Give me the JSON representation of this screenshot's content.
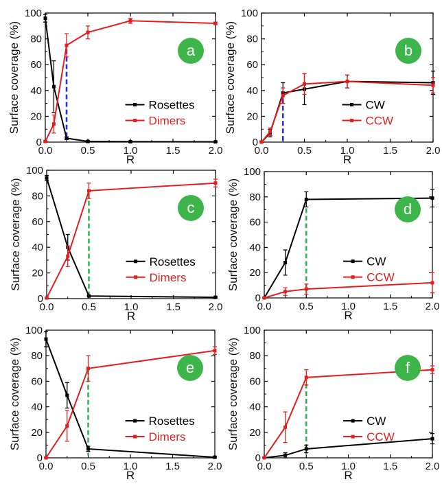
{
  "chart_data": [
    {
      "id": "a",
      "type": "line",
      "badge": "a",
      "ylabel": "Surface coverage (%)",
      "xlabel": "R",
      "xlim": [
        0,
        2
      ],
      "ylim": [
        0,
        100
      ],
      "xticks": [
        "0.0",
        "0.5",
        "1.0",
        "1.5",
        "2.0"
      ],
      "yticks": [
        "0",
        "20",
        "40",
        "60",
        "80",
        "100"
      ],
      "legend_position": "bottom-right",
      "marker_x": 0.25,
      "marker_range": [
        3,
        72
      ],
      "marker_style": "blue-dashed",
      "series": [
        {
          "name": "Rosettes",
          "color": "#000000",
          "x": [
            0,
            0.1,
            0.25,
            0.5,
            1.0,
            2.0
          ],
          "y": [
            96,
            43,
            3,
            0.5,
            0.3,
            0.2
          ],
          "err": [
            3,
            20,
            1,
            0.5,
            0.3,
            0.2
          ]
        },
        {
          "name": "Dimers",
          "color": "#e31e1e",
          "x": [
            0,
            0.1,
            0.25,
            0.5,
            1.0,
            2.0
          ],
          "y": [
            0.5,
            14,
            75,
            85,
            94,
            92
          ],
          "err": [
            0.5,
            7,
            9,
            5,
            2,
            1
          ]
        }
      ]
    },
    {
      "id": "b",
      "type": "line",
      "badge": "b",
      "ylabel": "Surface coverage (%)",
      "xlabel": "R",
      "xlim": [
        0,
        2
      ],
      "ylim": [
        0,
        100
      ],
      "xticks": [
        "0.0",
        "0.5",
        "1.0",
        "1.5",
        "2.0"
      ],
      "yticks": [
        "0",
        "20",
        "40",
        "60",
        "80",
        "100"
      ],
      "legend_position": "bottom-right",
      "marker_x": 0.25,
      "marker_range": [
        0,
        34
      ],
      "marker_style": "blue-dashed",
      "series": [
        {
          "name": "CW",
          "color": "#000000",
          "x": [
            0,
            0.1,
            0.25,
            0.5,
            1.0,
            2.0
          ],
          "y": [
            0,
            7,
            38,
            41,
            47,
            46
          ],
          "err": [
            1,
            3,
            8,
            12,
            5,
            9
          ]
        },
        {
          "name": "CCW",
          "color": "#e31e1e",
          "x": [
            0,
            0.1,
            0.25,
            0.5,
            1.0,
            2.0
          ],
          "y": [
            0,
            8,
            36,
            45,
            47,
            44
          ],
          "err": [
            1,
            3,
            6,
            8,
            5,
            6
          ]
        }
      ]
    },
    {
      "id": "c",
      "type": "line",
      "badge": "c",
      "ylabel": "Surface coverage (%)",
      "xlabel": "R",
      "xlim": [
        0,
        2
      ],
      "ylim": [
        0,
        100
      ],
      "xticks": [
        "0.0",
        "0.5",
        "1.0",
        "1.5",
        "2.0"
      ],
      "yticks": [
        "0",
        "20",
        "40",
        "60",
        "80",
        "100"
      ],
      "legend_position": "bottom-right",
      "marker_x": 0.5,
      "marker_range": [
        2,
        82
      ],
      "marker_style": "green-dashed",
      "series": [
        {
          "name": "Rosettes",
          "color": "#000000",
          "x": [
            0,
            0.25,
            0.5,
            2.0
          ],
          "y": [
            94,
            40,
            2,
            1
          ],
          "err": [
            2,
            10,
            0.5,
            0.5
          ]
        },
        {
          "name": "Dimers",
          "color": "#e31e1e",
          "x": [
            0,
            0.25,
            0.5,
            2.0
          ],
          "y": [
            0.5,
            33,
            84,
            90
          ],
          "err": [
            0.5,
            8,
            6,
            3
          ]
        }
      ]
    },
    {
      "id": "d",
      "type": "line",
      "badge": "d",
      "ylabel": "Surface coverage (%)",
      "xlabel": "R",
      "xlim": [
        0,
        2
      ],
      "ylim": [
        0,
        100
      ],
      "xticks": [
        "0.0",
        "0.5",
        "1.0",
        "1.5",
        "2.0"
      ],
      "yticks": [
        "0",
        "20",
        "40",
        "60",
        "80",
        "100"
      ],
      "legend_position": "bottom-right",
      "marker_x": 0.5,
      "marker_range": [
        4,
        71
      ],
      "marker_style": "green-dashed",
      "series": [
        {
          "name": "CW",
          "color": "#000000",
          "x": [
            0,
            0.25,
            0.5,
            2.0
          ],
          "y": [
            0,
            28,
            78,
            79
          ],
          "err": [
            0.5,
            10,
            6,
            7
          ]
        },
        {
          "name": "CCW",
          "color": "#e31e1e",
          "x": [
            0,
            0.25,
            0.5,
            2.0
          ],
          "y": [
            0,
            5,
            7,
            12
          ],
          "err": [
            0.5,
            3,
            4,
            8
          ]
        }
      ]
    },
    {
      "id": "e",
      "type": "line",
      "badge": "e",
      "ylabel": "Surface coverage (%)",
      "xlabel": "R",
      "xlim": [
        0,
        2
      ],
      "ylim": [
        0,
        100
      ],
      "xticks": [
        "0.0",
        "0.5",
        "1.0",
        "1.5",
        "2.0"
      ],
      "yticks": [
        "0",
        "20",
        "40",
        "60",
        "80",
        "100"
      ],
      "legend_position": "bottom-right",
      "marker_x": 0.5,
      "marker_range": [
        2,
        69
      ],
      "marker_style": "green-dashed",
      "series": [
        {
          "name": "Rosettes",
          "color": "#000000",
          "x": [
            0,
            0.25,
            0.5,
            2.0
          ],
          "y": [
            93,
            49,
            7,
            0.5
          ],
          "err": [
            6,
            10,
            2,
            0.5
          ]
        },
        {
          "name": "Dimers",
          "color": "#e31e1e",
          "x": [
            0,
            0.25,
            0.5,
            2.0
          ],
          "y": [
            0,
            25,
            70,
            84
          ],
          "err": [
            0.5,
            12,
            10,
            3
          ]
        }
      ]
    },
    {
      "id": "f",
      "type": "line",
      "badge": "f",
      "ylabel": "Surface coverage (%)",
      "xlabel": "R",
      "xlim": [
        0,
        2
      ],
      "ylim": [
        0,
        100
      ],
      "xticks": [
        "0.0",
        "0.5",
        "1.0",
        "1.5",
        "2.0"
      ],
      "yticks": [
        "0",
        "20",
        "40",
        "60",
        "80",
        "100"
      ],
      "legend_position": "bottom-right",
      "marker_x": 0.5,
      "marker_range": [
        3,
        64
      ],
      "marker_style": "green-dashed",
      "series": [
        {
          "name": "CW",
          "color": "#000000",
          "x": [
            0,
            0.25,
            0.5,
            2.0
          ],
          "y": [
            0,
            2,
            7,
            15
          ],
          "err": [
            0.5,
            2,
            3,
            4
          ]
        },
        {
          "name": "CCW",
          "color": "#e31e1e",
          "x": [
            0,
            0.25,
            0.5,
            2.0
          ],
          "y": [
            0,
            24,
            63,
            69
          ],
          "err": [
            0.5,
            12,
            6,
            3
          ]
        }
      ]
    }
  ],
  "colors": {
    "badge": "#3db54a",
    "badge_text": "#ffffff",
    "axis": "#000000",
    "blue_dashed": "#2a2ee6",
    "green_dashed": "#2fb55a"
  }
}
